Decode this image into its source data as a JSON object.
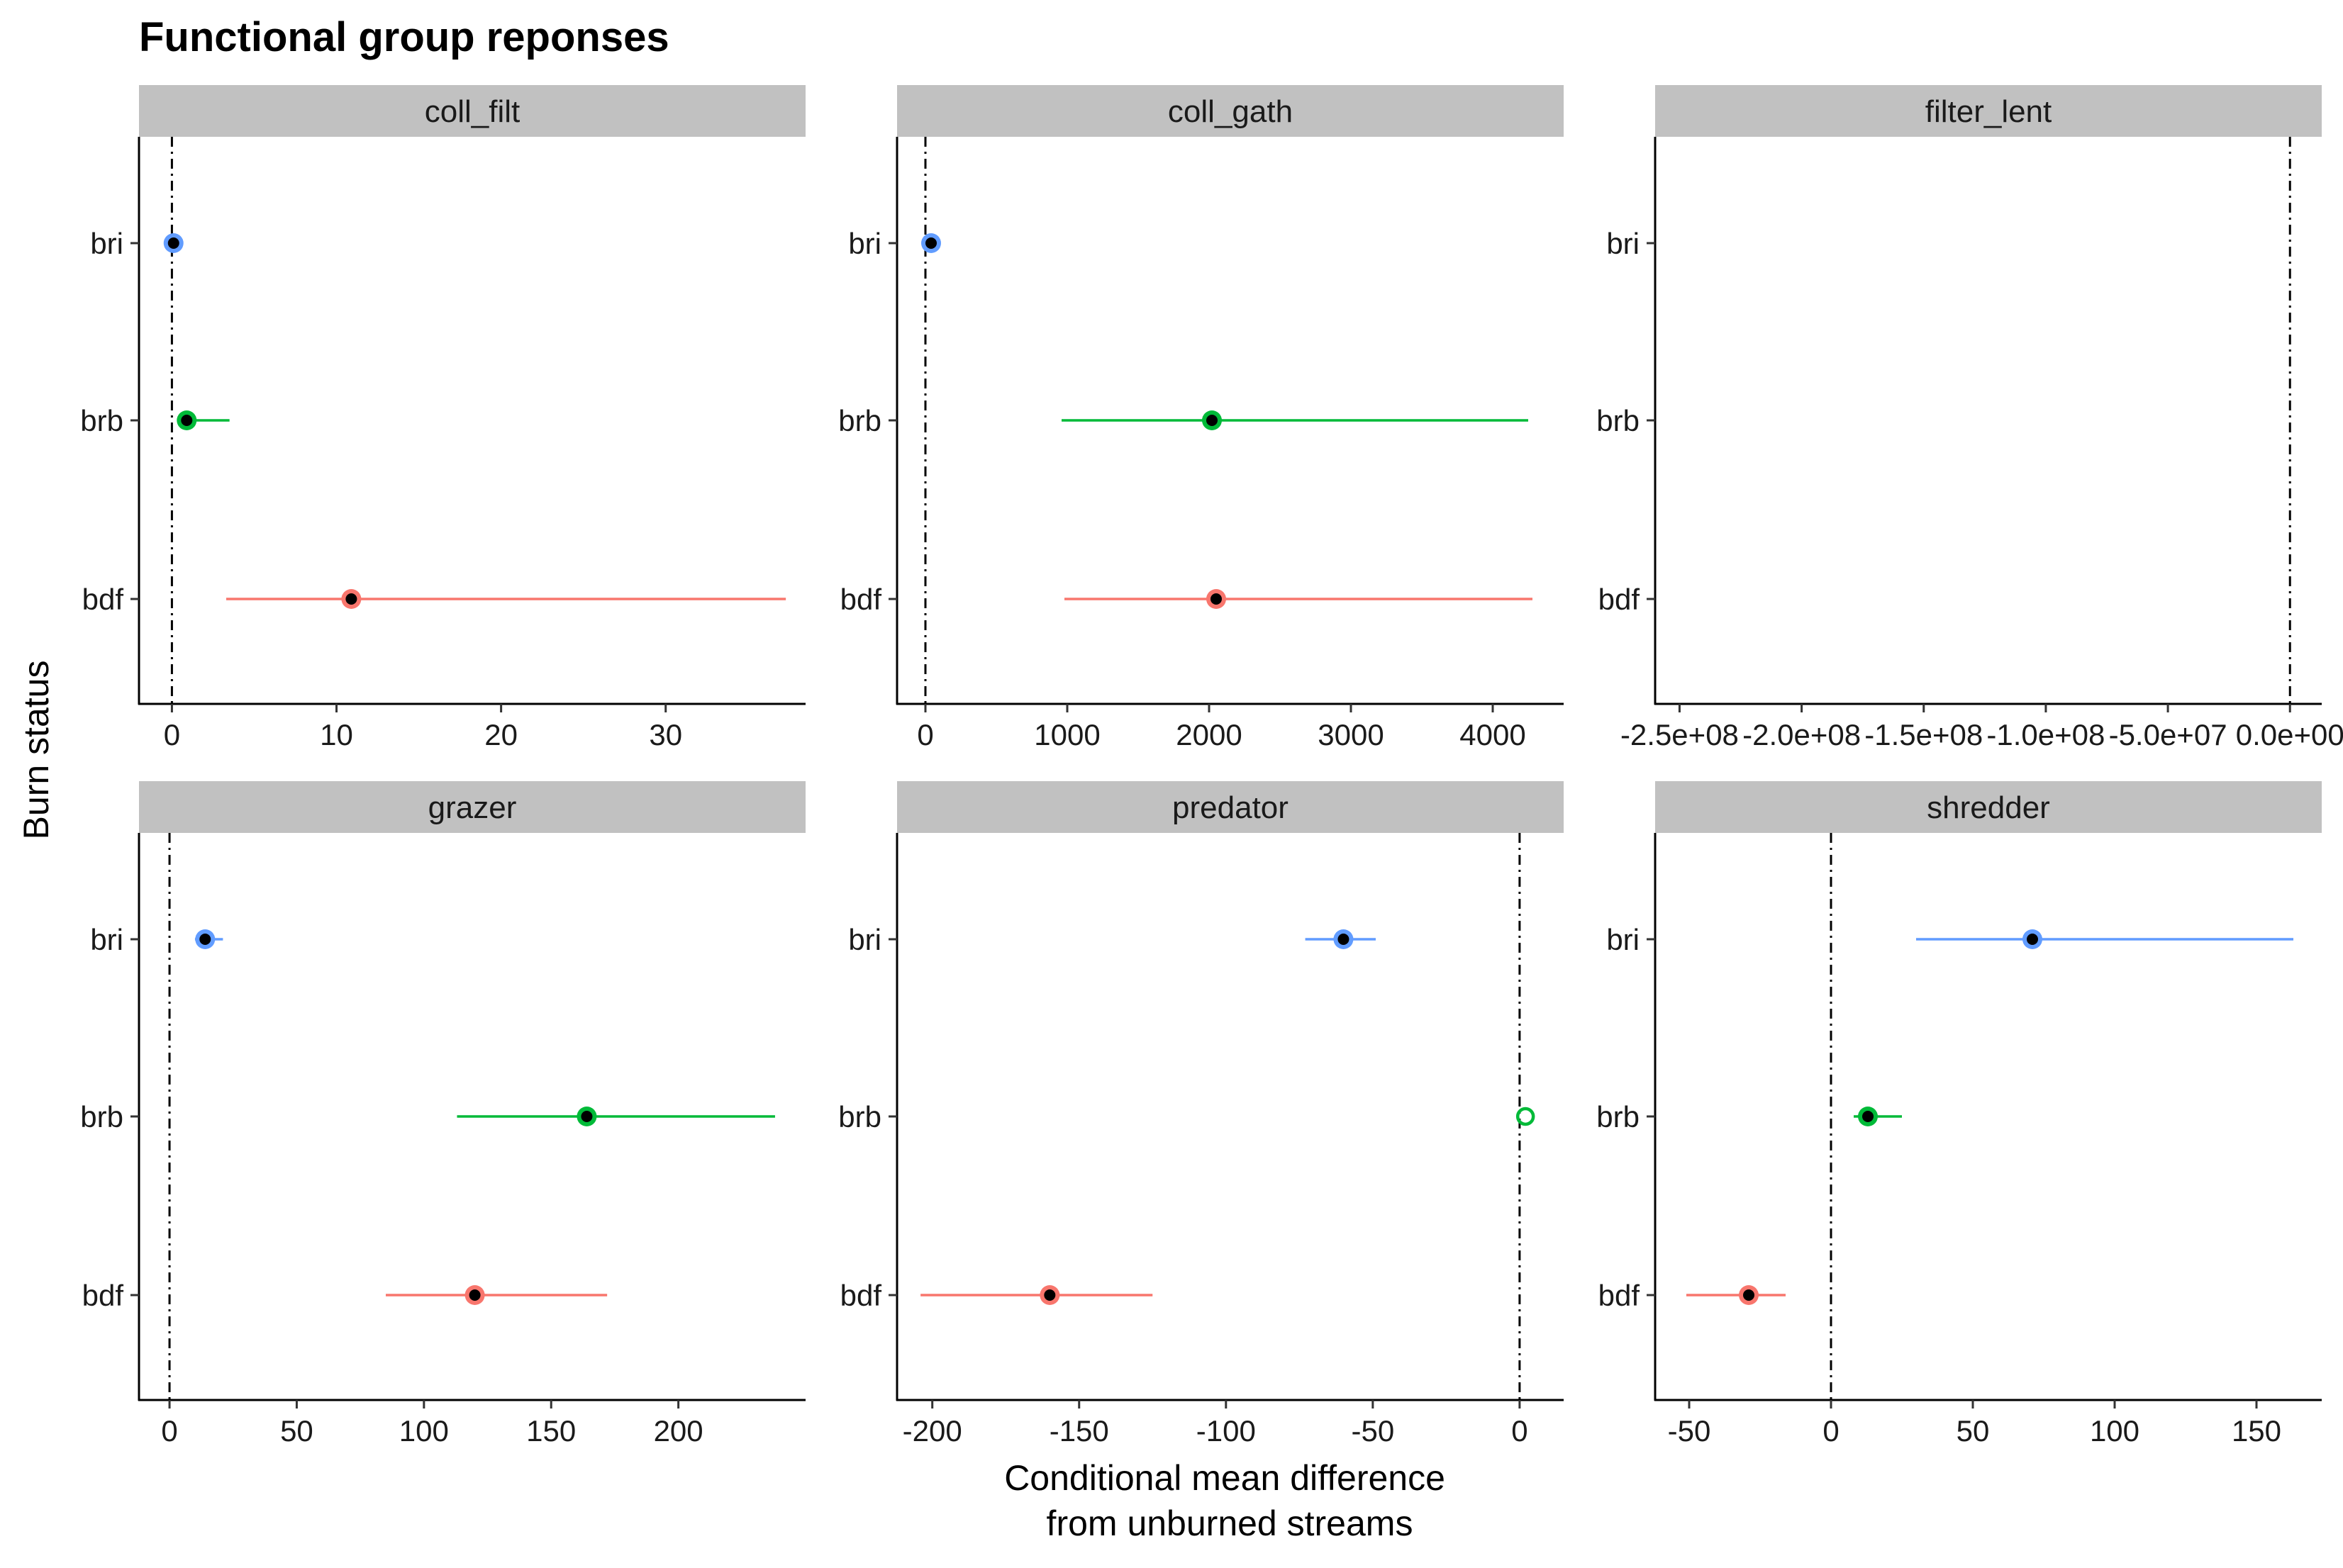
{
  "chart_data": {
    "type": "scatter",
    "title": "Functional group reponses",
    "xlabel_lines": [
      "Conditional mean difference",
      "from unburned streams"
    ],
    "ylabel": "Burn status",
    "categories": [
      "bri",
      "brb",
      "bdf"
    ],
    "series_colors": {
      "bri": "#619CFF",
      "brb": "#00BA38",
      "bdf": "#F8766D"
    },
    "reference_line": 0,
    "panels": [
      {
        "name": "coll_filt",
        "xlim": [
          -2,
          38.5
        ],
        "ticks": [
          0,
          10,
          20,
          30
        ],
        "tick_labels": [
          "0",
          "10",
          "20",
          "30"
        ],
        "points": [
          {
            "category": "bri",
            "value": 0.1,
            "lo": 0.1,
            "hi": 0.1,
            "filled": true
          },
          {
            "category": "brb",
            "value": 0.9,
            "lo": 0.5,
            "hi": 3.5,
            "filled": true
          },
          {
            "category": "bdf",
            "value": 10.9,
            "lo": 3.3,
            "hi": 37.3,
            "filled": true
          }
        ]
      },
      {
        "name": "coll_gath",
        "xlim": [
          -200,
          4500
        ],
        "ticks": [
          0,
          1000,
          2000,
          3000,
          4000
        ],
        "tick_labels": [
          "0",
          "1000",
          "2000",
          "3000",
          "4000"
        ],
        "points": [
          {
            "category": "bri",
            "value": 40,
            "lo": 40,
            "hi": 40,
            "filled": true
          },
          {
            "category": "brb",
            "value": 2020,
            "lo": 960,
            "hi": 4250,
            "filled": true
          },
          {
            "category": "bdf",
            "value": 2050,
            "lo": 980,
            "hi": 4280,
            "filled": true
          }
        ]
      },
      {
        "name": "filter_lent",
        "xlim": [
          -260000000,
          13000000
        ],
        "ticks": [
          -250000000,
          -200000000,
          -150000000,
          -100000000,
          -50000000,
          0
        ],
        "tick_labels": [
          "-2.5e+08",
          "-2.0e+08",
          "-1.5e+08",
          "-1.0e+08",
          "-5.0e+07",
          "0.0e+00"
        ],
        "points": []
      },
      {
        "name": "grazer",
        "xlim": [
          -12,
          250
        ],
        "ticks": [
          0,
          50,
          100,
          150,
          200
        ],
        "tick_labels": [
          "0",
          "50",
          "100",
          "150",
          "200"
        ],
        "points": [
          {
            "category": "bri",
            "value": 14,
            "lo": 10,
            "hi": 21,
            "filled": true
          },
          {
            "category": "brb",
            "value": 164,
            "lo": 113,
            "hi": 238,
            "filled": true
          },
          {
            "category": "bdf",
            "value": 120,
            "lo": 85,
            "hi": 172,
            "filled": true
          }
        ]
      },
      {
        "name": "predator",
        "xlim": [
          -212,
          15
        ],
        "ticks": [
          -200,
          -150,
          -100,
          -50,
          0
        ],
        "tick_labels": [
          "-200",
          "-150",
          "-100",
          "-50",
          "0"
        ],
        "points": [
          {
            "category": "bri",
            "value": -60,
            "lo": -73,
            "hi": -49,
            "filled": true
          },
          {
            "category": "brb",
            "value": 2,
            "lo": 2,
            "hi": 2,
            "filled": false
          },
          {
            "category": "bdf",
            "value": -160,
            "lo": -204,
            "hi": -125,
            "filled": true
          }
        ]
      },
      {
        "name": "shredder",
        "xlim": [
          -62,
          173
        ],
        "ticks": [
          -50,
          0,
          50,
          100,
          150
        ],
        "tick_labels": [
          "-50",
          "0",
          "50",
          "100",
          "150"
        ],
        "points": [
          {
            "category": "bri",
            "value": 71,
            "lo": 30,
            "hi": 163,
            "filled": true
          },
          {
            "category": "brb",
            "value": 13,
            "lo": 8,
            "hi": 25,
            "filled": true
          },
          {
            "category": "bdf",
            "value": -29,
            "lo": -51,
            "hi": -16,
            "filled": true
          }
        ]
      }
    ]
  }
}
